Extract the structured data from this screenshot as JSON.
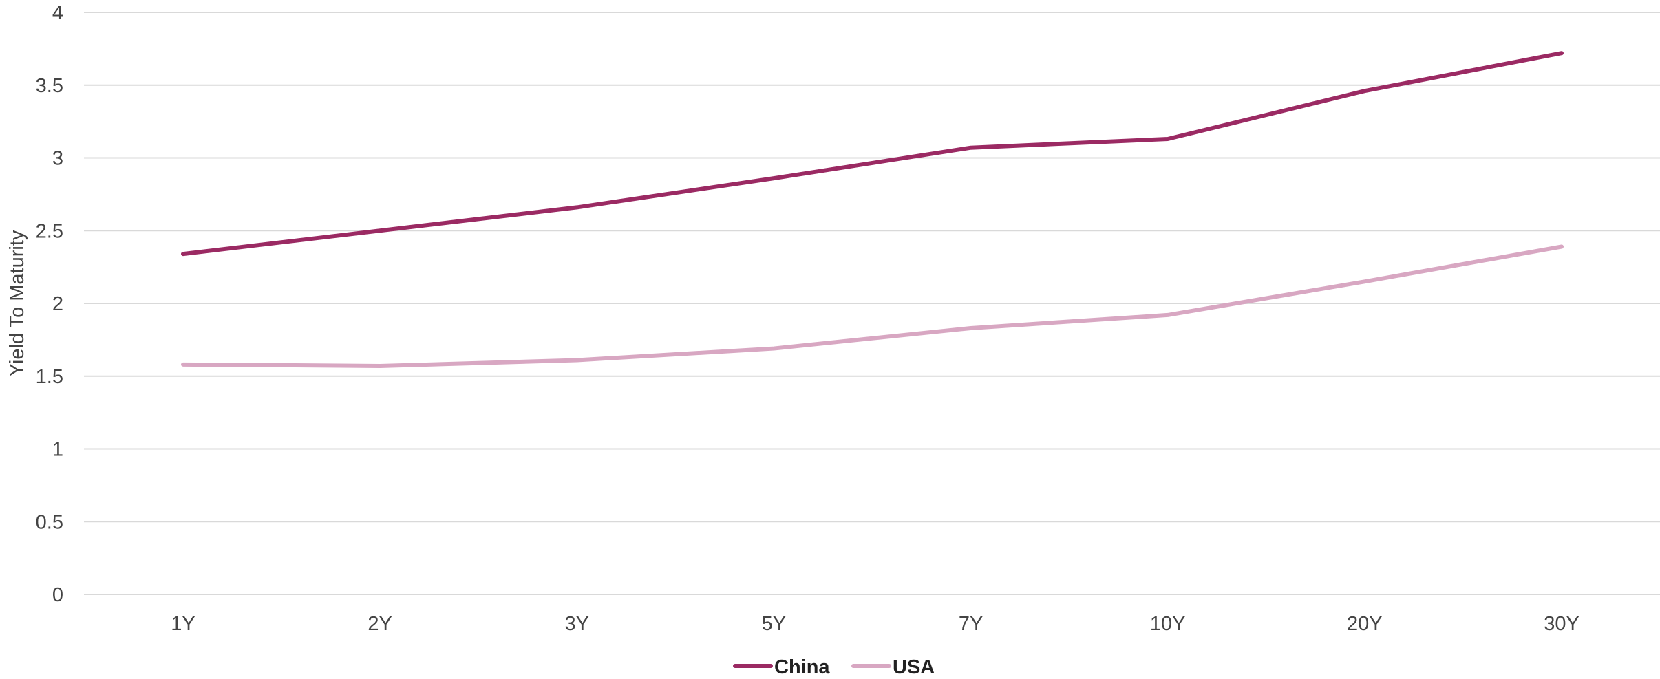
{
  "chart_data": {
    "type": "line",
    "categories": [
      "1Y",
      "2Y",
      "3Y",
      "5Y",
      "7Y",
      "10Y",
      "20Y",
      "30Y"
    ],
    "series": [
      {
        "name": "China",
        "color": "#9b2a63",
        "values": [
          2.34,
          2.5,
          2.66,
          2.86,
          3.07,
          3.13,
          3.46,
          3.72
        ]
      },
      {
        "name": "USA",
        "color": "#d8a7c2",
        "values": [
          1.58,
          1.57,
          1.61,
          1.69,
          1.83,
          1.92,
          2.15,
          2.39
        ]
      }
    ],
    "title": "",
    "xlabel": "",
    "ylabel": "Yield To Maturity",
    "ylim": [
      0,
      4
    ],
    "yticks": [
      "0",
      "0.5",
      "1",
      "1.5",
      "2",
      "2.5",
      "3",
      "3.5",
      "4"
    ],
    "grid": true,
    "legend_position": "bottom-center"
  }
}
